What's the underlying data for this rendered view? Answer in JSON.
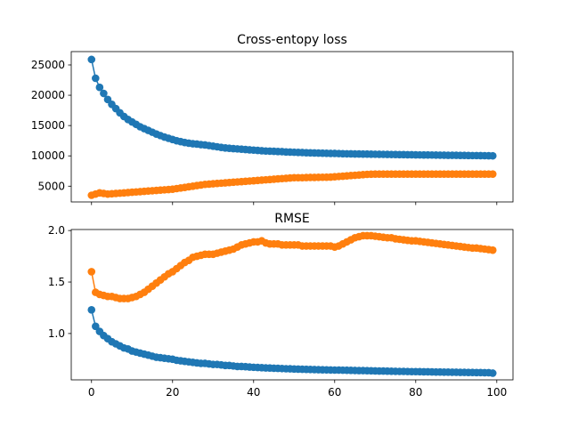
{
  "chart_data": [
    {
      "type": "line",
      "title": "Cross-entopy loss",
      "xlabel": "",
      "ylabel": "",
      "xlim": [
        -5,
        104
      ],
      "ylim": [
        2400,
        27200
      ],
      "xticks": [
        0,
        20,
        40,
        60,
        80,
        100
      ],
      "show_xtick_labels": false,
      "yticks": [
        5000,
        10000,
        15000,
        20000,
        25000
      ],
      "ytick_labels": [
        "5000",
        "10000",
        "15000",
        "20000",
        "25000"
      ],
      "grid": false,
      "legend": "none",
      "markers": true,
      "series": [
        {
          "color": "#1f77b4",
          "x": [
            0,
            1,
            2,
            3,
            4,
            5,
            6,
            7,
            8,
            9,
            10,
            11,
            12,
            13,
            14,
            15,
            16,
            17,
            18,
            19,
            20,
            21,
            22,
            23,
            24,
            25,
            26,
            27,
            28,
            29,
            30,
            31,
            32,
            33,
            34,
            35,
            36,
            37,
            38,
            39,
            40,
            41,
            42,
            43,
            44,
            45,
            46,
            47,
            48,
            49,
            50,
            51,
            52,
            53,
            54,
            55,
            56,
            57,
            58,
            59,
            60,
            61,
            62,
            63,
            64,
            65,
            66,
            67,
            68,
            69,
            70,
            71,
            72,
            73,
            74,
            75,
            76,
            77,
            78,
            79,
            80,
            81,
            82,
            83,
            84,
            85,
            86,
            87,
            88,
            89,
            90,
            91,
            92,
            93,
            94,
            95,
            96,
            97,
            98,
            99
          ],
          "values": [
            25900,
            22800,
            21300,
            20300,
            19300,
            18500,
            17800,
            17100,
            16500,
            16000,
            15600,
            15200,
            14800,
            14500,
            14200,
            13900,
            13600,
            13350,
            13100,
            12900,
            12700,
            12500,
            12350,
            12200,
            12100,
            12000,
            11950,
            11850,
            11800,
            11700,
            11600,
            11500,
            11400,
            11300,
            11250,
            11200,
            11150,
            11100,
            11050,
            11000,
            10950,
            10900,
            10850,
            10800,
            10780,
            10750,
            10720,
            10700,
            10650,
            10620,
            10600,
            10570,
            10550,
            10520,
            10500,
            10480,
            10460,
            10440,
            10420,
            10400,
            10400,
            10380,
            10350,
            10340,
            10330,
            10320,
            10310,
            10300,
            10290,
            10280,
            10270,
            10260,
            10250,
            10240,
            10230,
            10220,
            10210,
            10200,
            10190,
            10180,
            10170,
            10160,
            10150,
            10150,
            10140,
            10130,
            10120,
            10110,
            10100,
            10100,
            10090,
            10080,
            10070,
            10060,
            10050,
            10050,
            10040,
            10030,
            10020,
            10010
          ]
        },
        {
          "color": "#ff7f0e",
          "x": [
            0,
            1,
            2,
            3,
            4,
            5,
            6,
            7,
            8,
            9,
            10,
            11,
            12,
            13,
            14,
            15,
            16,
            17,
            18,
            19,
            20,
            21,
            22,
            23,
            24,
            25,
            26,
            27,
            28,
            29,
            30,
            31,
            32,
            33,
            34,
            35,
            36,
            37,
            38,
            39,
            40,
            41,
            42,
            43,
            44,
            45,
            46,
            47,
            48,
            49,
            50,
            51,
            52,
            53,
            54,
            55,
            56,
            57,
            58,
            59,
            60,
            61,
            62,
            63,
            64,
            65,
            66,
            67,
            68,
            69,
            70,
            71,
            72,
            73,
            74,
            75,
            76,
            77,
            78,
            79,
            80,
            81,
            82,
            83,
            84,
            85,
            86,
            87,
            88,
            89,
            90,
            91,
            92,
            93,
            94,
            95,
            96,
            97,
            98,
            99
          ],
          "values": [
            3500,
            3700,
            3900,
            3800,
            3700,
            3750,
            3800,
            3850,
            3900,
            3950,
            4000,
            4050,
            4100,
            4150,
            4200,
            4250,
            4300,
            4350,
            4400,
            4450,
            4500,
            4600,
            4700,
            4800,
            4900,
            5000,
            5100,
            5200,
            5300,
            5350,
            5400,
            5450,
            5500,
            5550,
            5600,
            5650,
            5700,
            5750,
            5800,
            5850,
            5900,
            5950,
            6000,
            6050,
            6100,
            6150,
            6200,
            6250,
            6300,
            6350,
            6400,
            6400,
            6400,
            6420,
            6440,
            6450,
            6460,
            6470,
            6480,
            6500,
            6550,
            6600,
            6650,
            6700,
            6750,
            6800,
            6850,
            6900,
            6950,
            6980,
            6990,
            7000,
            7000,
            7000,
            7000,
            7000,
            7000,
            7000,
            7000,
            7000,
            7000,
            7000,
            7000,
            7000,
            7000,
            7000,
            7000,
            7000,
            7000,
            7000,
            7000,
            7000,
            7000,
            7000,
            7000,
            7000,
            7000,
            7000,
            7000,
            7000
          ]
        }
      ]
    },
    {
      "type": "line",
      "title": "RMSE",
      "xlabel": "",
      "ylabel": "",
      "xlim": [
        -5,
        104
      ],
      "ylim": [
        0.55,
        2.01
      ],
      "xticks": [
        0,
        20,
        40,
        60,
        80,
        100
      ],
      "xtick_labels": [
        "0",
        "20",
        "40",
        "60",
        "80",
        "100"
      ],
      "yticks": [
        1.0,
        1.5,
        2.0
      ],
      "ytick_labels": [
        "1.0",
        "1.5",
        "2.0"
      ],
      "grid": false,
      "legend": "none",
      "markers": true,
      "series": [
        {
          "color": "#1f77b4",
          "x": [
            0,
            1,
            2,
            3,
            4,
            5,
            6,
            7,
            8,
            9,
            10,
            11,
            12,
            13,
            14,
            15,
            16,
            17,
            18,
            19,
            20,
            21,
            22,
            23,
            24,
            25,
            26,
            27,
            28,
            29,
            30,
            31,
            32,
            33,
            34,
            35,
            36,
            37,
            38,
            39,
            40,
            41,
            42,
            43,
            44,
            45,
            46,
            47,
            48,
            49,
            50,
            51,
            52,
            53,
            54,
            55,
            56,
            57,
            58,
            59,
            60,
            61,
            62,
            63,
            64,
            65,
            66,
            67,
            68,
            69,
            70,
            71,
            72,
            73,
            74,
            75,
            76,
            77,
            78,
            79,
            80,
            81,
            82,
            83,
            84,
            85,
            86,
            87,
            88,
            89,
            90,
            91,
            92,
            93,
            94,
            95,
            96,
            97,
            98,
            99
          ],
          "values": [
            1.23,
            1.07,
            1.02,
            0.98,
            0.95,
            0.92,
            0.9,
            0.88,
            0.86,
            0.85,
            0.83,
            0.82,
            0.81,
            0.8,
            0.79,
            0.78,
            0.77,
            0.765,
            0.76,
            0.755,
            0.75,
            0.74,
            0.735,
            0.73,
            0.725,
            0.72,
            0.715,
            0.71,
            0.71,
            0.705,
            0.7,
            0.7,
            0.695,
            0.69,
            0.69,
            0.685,
            0.68,
            0.68,
            0.678,
            0.675,
            0.672,
            0.67,
            0.668,
            0.666,
            0.665,
            0.663,
            0.662,
            0.66,
            0.658,
            0.657,
            0.655,
            0.654,
            0.653,
            0.652,
            0.651,
            0.65,
            0.649,
            0.648,
            0.647,
            0.646,
            0.645,
            0.645,
            0.644,
            0.643,
            0.642,
            0.641,
            0.64,
            0.64,
            0.639,
            0.638,
            0.637,
            0.636,
            0.636,
            0.635,
            0.634,
            0.633,
            0.632,
            0.632,
            0.631,
            0.63,
            0.63,
            0.629,
            0.628,
            0.628,
            0.627,
            0.626,
            0.626,
            0.625,
            0.625,
            0.624,
            0.624,
            0.623,
            0.623,
            0.622,
            0.622,
            0.621,
            0.621,
            0.62,
            0.62,
            0.615
          ]
        },
        {
          "color": "#ff7f0e",
          "x": [
            0,
            1,
            2,
            3,
            4,
            5,
            6,
            7,
            8,
            9,
            10,
            11,
            12,
            13,
            14,
            15,
            16,
            17,
            18,
            19,
            20,
            21,
            22,
            23,
            24,
            25,
            26,
            27,
            28,
            29,
            30,
            31,
            32,
            33,
            34,
            35,
            36,
            37,
            38,
            39,
            40,
            41,
            42,
            43,
            44,
            45,
            46,
            47,
            48,
            49,
            50,
            51,
            52,
            53,
            54,
            55,
            56,
            57,
            58,
            59,
            60,
            61,
            62,
            63,
            64,
            65,
            66,
            67,
            68,
            69,
            70,
            71,
            72,
            73,
            74,
            75,
            76,
            77,
            78,
            79,
            80,
            81,
            82,
            83,
            84,
            85,
            86,
            87,
            88,
            89,
            90,
            91,
            92,
            93,
            94,
            95,
            96,
            97,
            98,
            99
          ],
          "values": [
            1.6,
            1.4,
            1.38,
            1.37,
            1.36,
            1.36,
            1.35,
            1.34,
            1.34,
            1.34,
            1.35,
            1.36,
            1.38,
            1.4,
            1.43,
            1.46,
            1.49,
            1.52,
            1.55,
            1.58,
            1.6,
            1.63,
            1.66,
            1.69,
            1.71,
            1.74,
            1.75,
            1.76,
            1.77,
            1.77,
            1.77,
            1.78,
            1.79,
            1.8,
            1.81,
            1.82,
            1.84,
            1.86,
            1.87,
            1.88,
            1.89,
            1.89,
            1.9,
            1.88,
            1.87,
            1.87,
            1.87,
            1.86,
            1.86,
            1.86,
            1.86,
            1.86,
            1.85,
            1.85,
            1.85,
            1.85,
            1.85,
            1.85,
            1.85,
            1.85,
            1.84,
            1.85,
            1.87,
            1.89,
            1.91,
            1.93,
            1.94,
            1.95,
            1.95,
            1.95,
            1.945,
            1.94,
            1.935,
            1.93,
            1.93,
            1.92,
            1.915,
            1.91,
            1.905,
            1.9,
            1.9,
            1.895,
            1.89,
            1.885,
            1.88,
            1.875,
            1.87,
            1.865,
            1.86,
            1.855,
            1.85,
            1.845,
            1.84,
            1.835,
            1.83,
            1.83,
            1.825,
            1.82,
            1.815,
            1.81
          ]
        }
      ]
    }
  ]
}
